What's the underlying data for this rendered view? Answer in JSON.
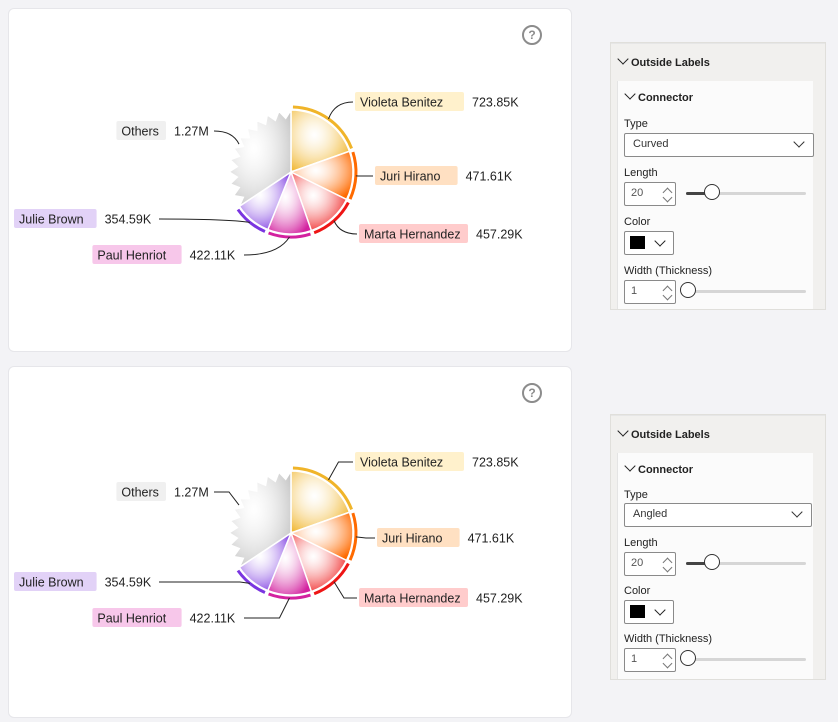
{
  "colors": {
    "violeta": "#f0b429",
    "juri": "#ff6a00",
    "marta": "#ee1515",
    "paul": "#d3219f",
    "julie": "#7a35e0",
    "others": "#c3c3c3",
    "violeta_tag": "#fff1cc",
    "juri_tag": "#ffe0c2",
    "marta_tag": "#ffcccc",
    "paul_tag": "#f7c7ea",
    "julie_tag": "#e2d2f7",
    "others_tag": "#f0f0f0",
    "connector": "#222222"
  },
  "help_icon": "?",
  "charts": [
    {
      "connector_type": "Curved",
      "chart_data": {
        "type": "pie",
        "slices": [
          {
            "label": "Violeta Benitez",
            "value_label": "723.85K",
            "value": 723.85
          },
          {
            "label": "Juri Hirano",
            "value_label": "471.61K",
            "value": 471.61
          },
          {
            "label": "Marta Hernandez",
            "value_label": "457.29K",
            "value": 457.29
          },
          {
            "label": "Paul Henriot",
            "value_label": "422.11K",
            "value": 422.11
          },
          {
            "label": "Julie Brown",
            "value_label": "354.59K",
            "value": 354.59
          },
          {
            "label": "Others",
            "value_label": "1.27M",
            "value": 1270
          }
        ]
      }
    },
    {
      "connector_type": "Angled",
      "chart_data": {
        "type": "pie",
        "slices": [
          {
            "label": "Violeta Benitez",
            "value_label": "723.85K",
            "value": 723.85
          },
          {
            "label": "Juri Hirano",
            "value_label": "471.61K",
            "value": 471.61
          },
          {
            "label": "Marta Hernandez",
            "value_label": "457.29K",
            "value": 457.29
          },
          {
            "label": "Paul Henriot",
            "value_label": "422.11K",
            "value": 422.11
          },
          {
            "label": "Julie Brown",
            "value_label": "354.59K",
            "value": 354.59
          },
          {
            "label": "Others",
            "value_label": "1.27M",
            "value": 1270
          }
        ]
      }
    }
  ],
  "panels": [
    {
      "section_title": "Outside Labels",
      "subsection_title": "Connector",
      "type_label": "Type",
      "type_value": "Curved",
      "length_label": "Length",
      "length_value": "20",
      "length_slider_fraction": 0.22,
      "color_label": "Color",
      "color_value": "#000000",
      "width_label": "Width (Thickness)",
      "width_value": "1",
      "width_slider_fraction": 0.0
    },
    {
      "section_title": "Outside Labels",
      "subsection_title": "Connector",
      "type_label": "Type",
      "type_value": "Angled",
      "length_label": "Length",
      "length_value": "20",
      "length_slider_fraction": 0.22,
      "color_label": "Color",
      "color_value": "#000000",
      "width_label": "Width (Thickness)",
      "width_value": "1",
      "width_slider_fraction": 0.0
    }
  ]
}
